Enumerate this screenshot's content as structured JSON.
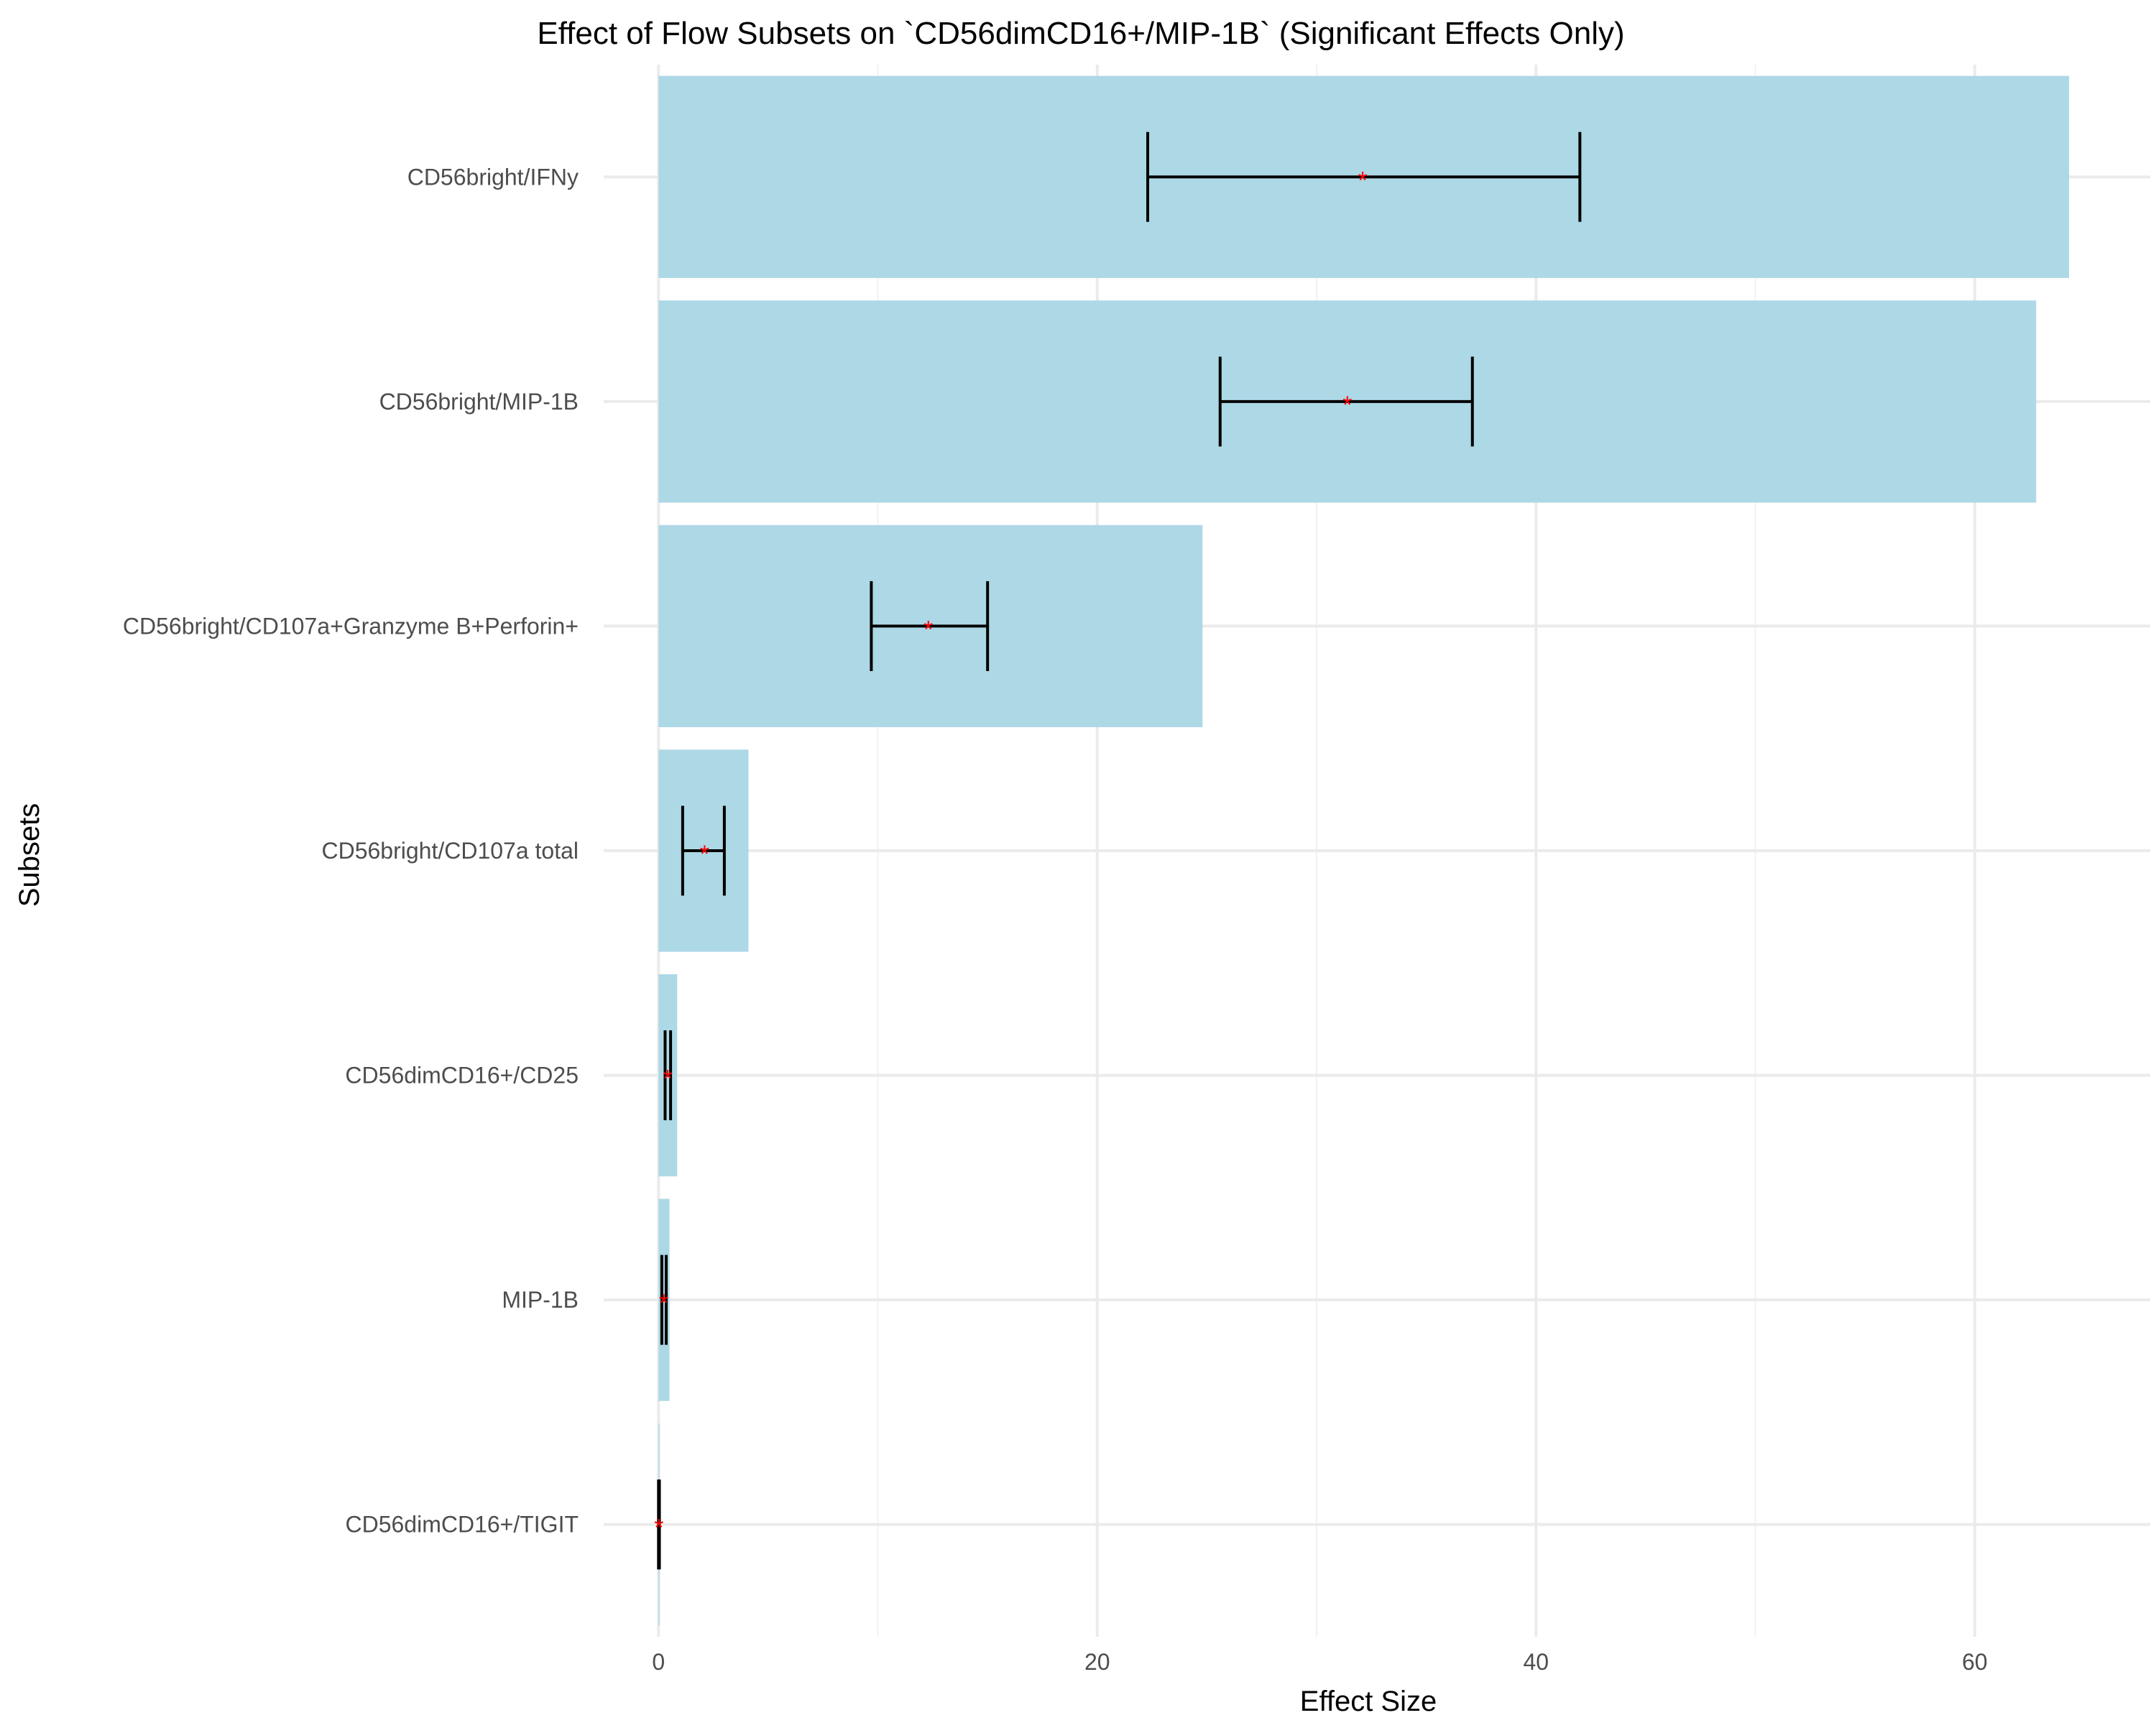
{
  "chart_data": {
    "type": "bar",
    "orientation": "horizontal",
    "title": "Effect of Flow Subsets on `CD56dimCD16+/MIP-1B` (Significant Effects Only)",
    "xlabel": "Effect Size",
    "ylabel": "Subsets",
    "xlim": [
      -2.5,
      68
    ],
    "x_ticks": [
      0,
      20,
      40,
      60
    ],
    "x_tick_labels": [
      "0",
      "20",
      "40",
      "60"
    ],
    "grid": true,
    "legend": "none",
    "bar_color": "#add8e6",
    "errorbar_color": "#000000",
    "marker_color": "#ff0000",
    "marker_symbol": "*",
    "categories": [
      "CD56bright/IFNy",
      "CD56bright/MIP-1B",
      "CD56bright/CD107a+Granzyme B+Perforin+",
      "CD56bright/CD107a total",
      "CD56dimCD16+/CD25",
      "MIP-1B",
      "CD56dimCD16+/TIGIT"
    ],
    "values": [
      64.3,
      62.8,
      24.8,
      4.1,
      0.85,
      0.5,
      0.05
    ],
    "point_estimates": [
      32.1,
      31.4,
      12.3,
      2.1,
      0.42,
      0.24,
      0.02
    ],
    "error_low": [
      22.3,
      25.6,
      9.7,
      1.1,
      0.3,
      0.15,
      0.0
    ],
    "error_high": [
      42.0,
      37.1,
      15.0,
      3.0,
      0.55,
      0.35,
      0.04
    ]
  }
}
